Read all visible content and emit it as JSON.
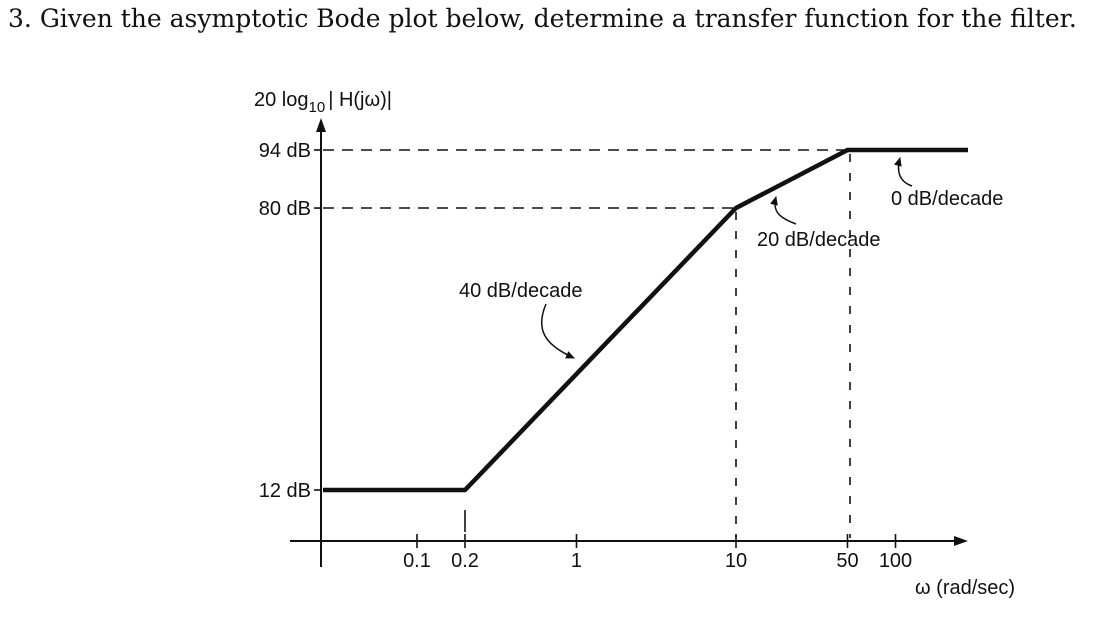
{
  "question": {
    "number": "3.",
    "text": "Given the asymptotic Bode plot below, determine a transfer function for the filter."
  },
  "chart_data": {
    "type": "line",
    "ylabel_parts": {
      "prefix": "20 log",
      "sub": "10",
      "suffix": "| H(jω)|"
    },
    "xlabel": "ω (rad/sec)",
    "x_scale": "log",
    "x_ticks": [
      {
        "value": 0.1,
        "label": "0.1"
      },
      {
        "value": 0.2,
        "label": "0.2"
      },
      {
        "value": 1,
        "label": "1"
      },
      {
        "value": 10,
        "label": "10"
      },
      {
        "value": 50,
        "label": "50"
      },
      {
        "value": 100,
        "label": "100"
      }
    ],
    "y_ticks": [
      {
        "value": 12,
        "label": "12 dB"
      },
      {
        "value": 80,
        "label": "80 dB"
      },
      {
        "value": 94,
        "label": "94 dB"
      }
    ],
    "series": [
      {
        "x": [
          0.03,
          0.2,
          10,
          50,
          300
        ],
        "y": [
          12,
          12,
          80,
          94,
          94
        ]
      }
    ],
    "annotations": [
      {
        "text": "40 dB/decade"
      },
      {
        "text": "20 dB/decade"
      },
      {
        "text": "0 dB/decade"
      }
    ]
  }
}
